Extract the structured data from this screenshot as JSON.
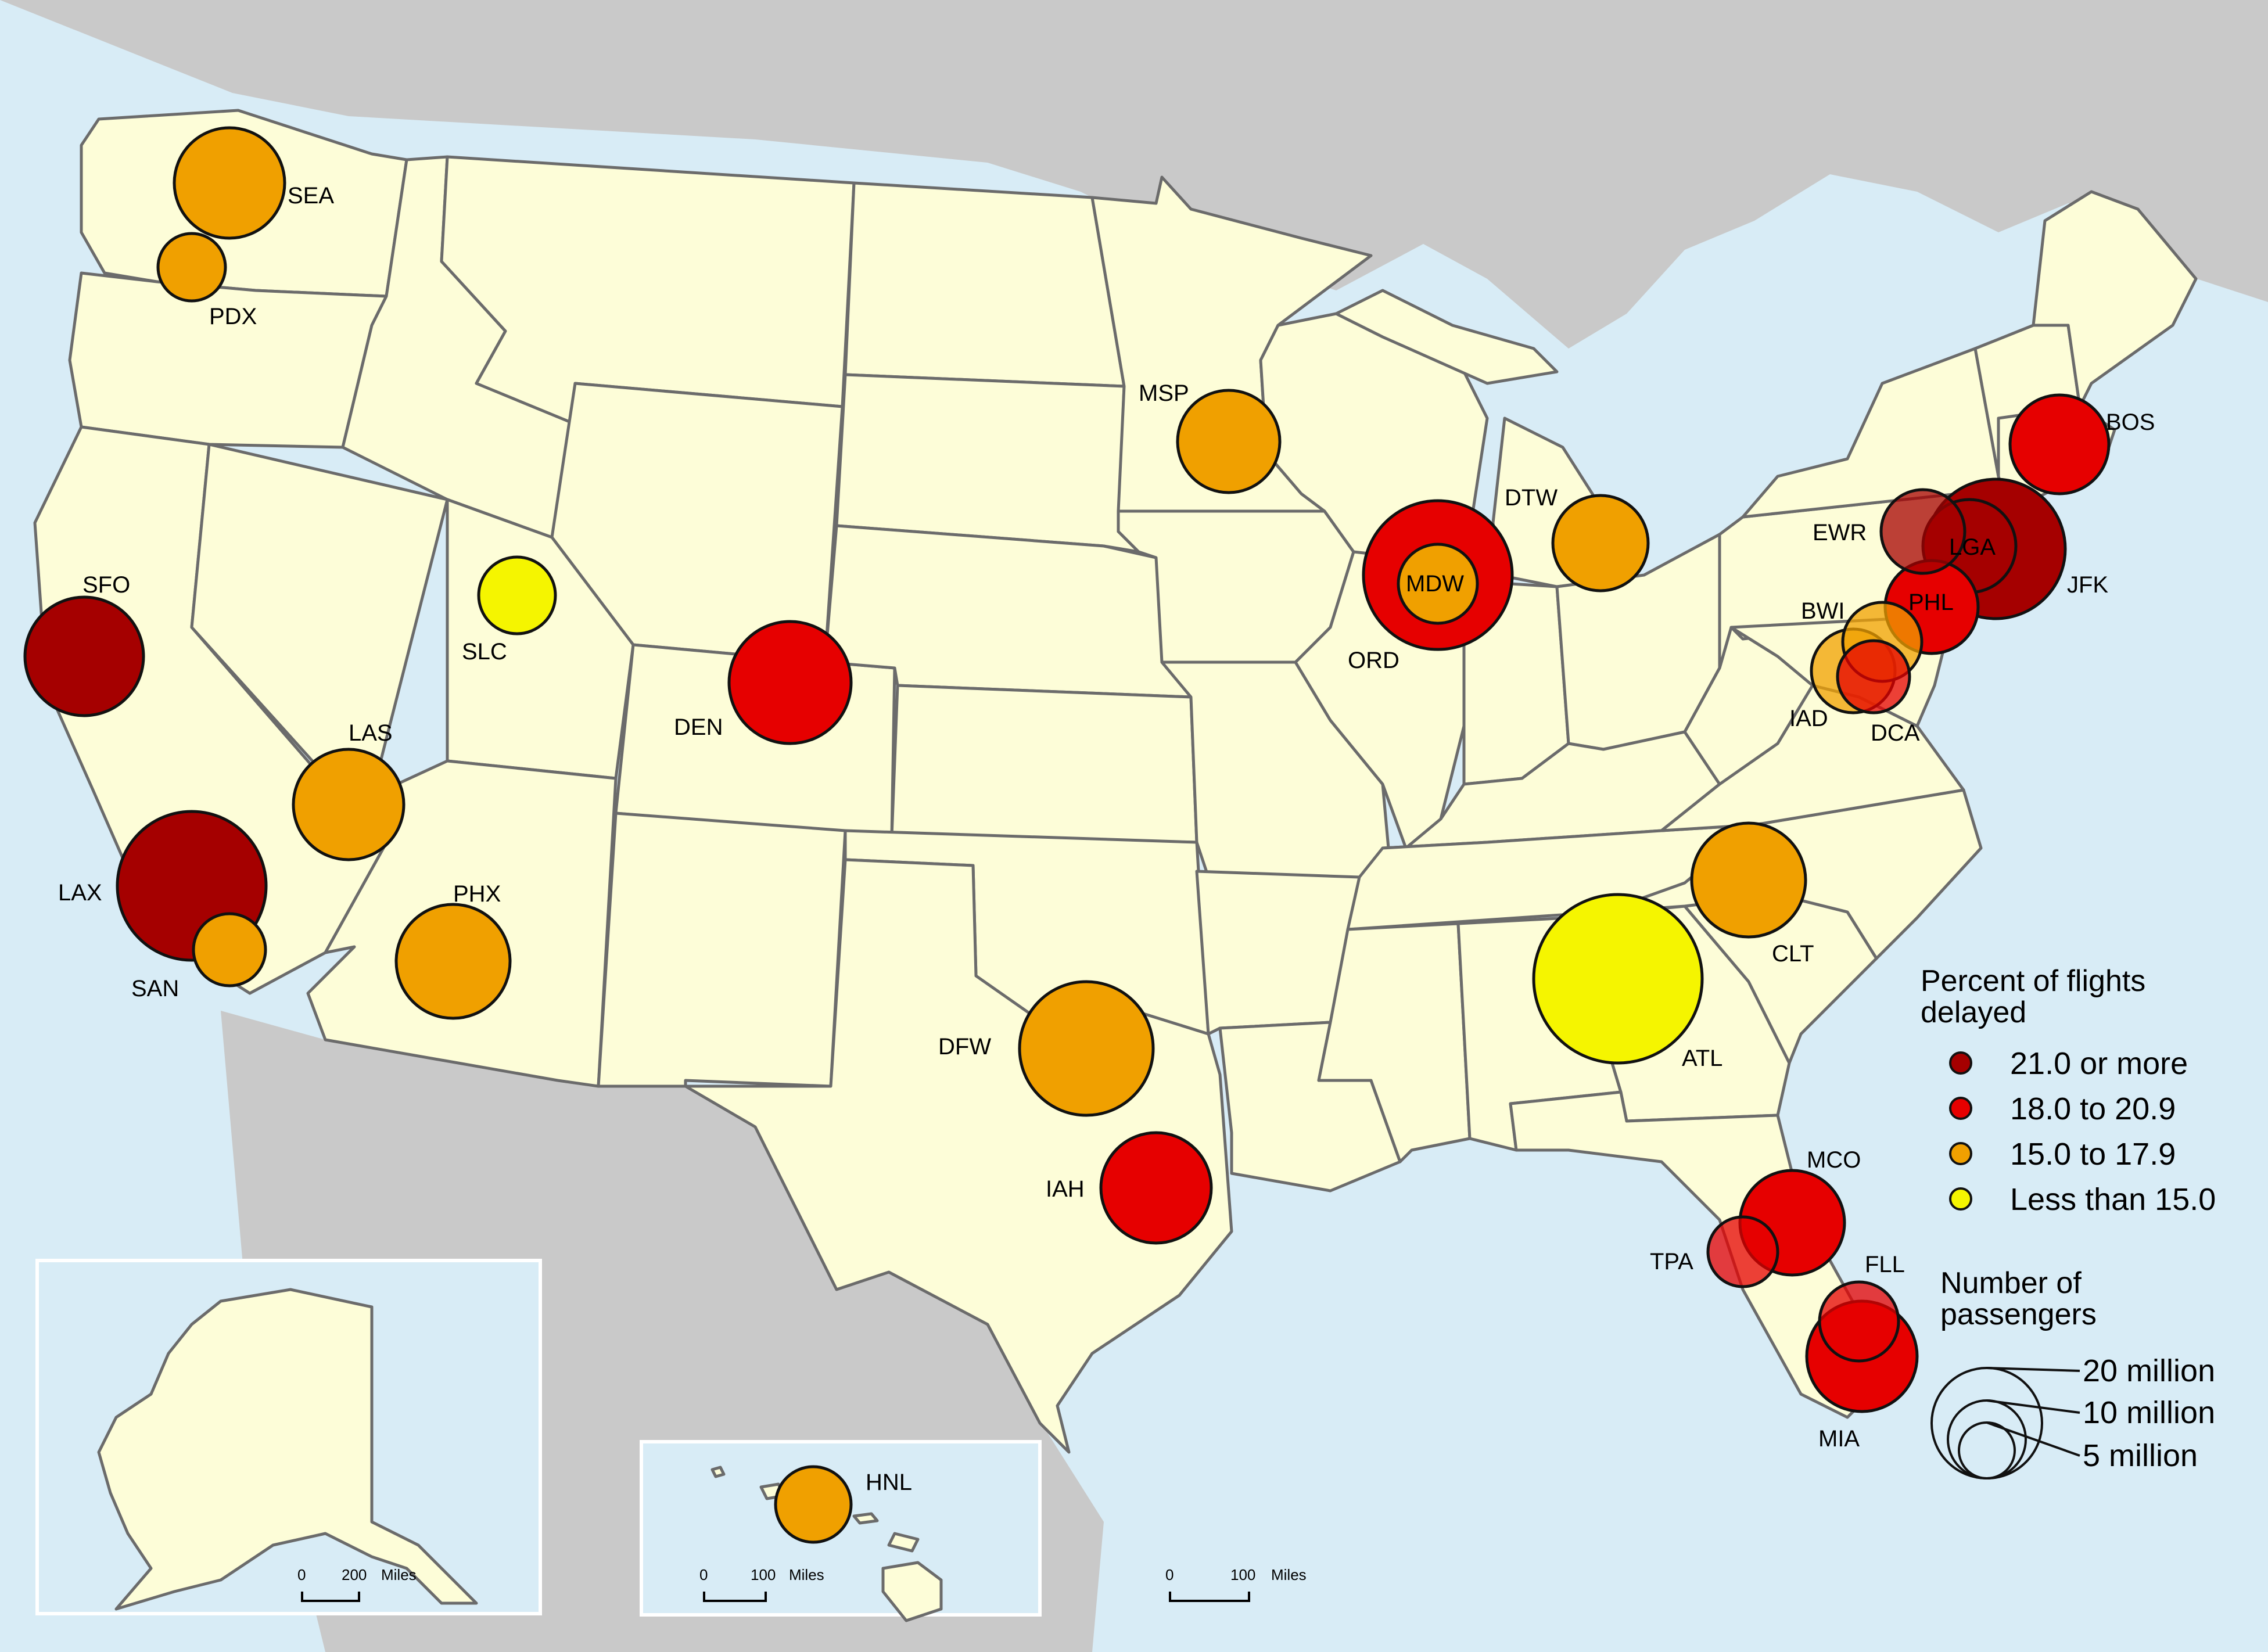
{
  "legend": {
    "color_title": "Percent of flights delayed",
    "color_classes": [
      {
        "label": "21.0 or more",
        "color": "#a50000"
      },
      {
        "label": "18.0 to 20.9",
        "color": "#e60000"
      },
      {
        "label": "15.0 to 17.9",
        "color": "#f0a000"
      },
      {
        "label": "Less than 15.0",
        "color": "#f5f500"
      }
    ],
    "size_title": "Number of passengers",
    "size_classes": [
      {
        "label": "20 million",
        "value": 20
      },
      {
        "label": "10 million",
        "value": 10
      },
      {
        "label": "5 million",
        "value": 5
      }
    ]
  },
  "airports": [
    {
      "code": "SEA",
      "delay_class": 2
    },
    {
      "code": "PDX",
      "delay_class": 2
    },
    {
      "code": "SFO",
      "delay_class": 0
    },
    {
      "code": "LAX",
      "delay_class": 0
    },
    {
      "code": "SAN",
      "delay_class": 2
    },
    {
      "code": "LAS",
      "delay_class": 2
    },
    {
      "code": "PHX",
      "delay_class": 2
    },
    {
      "code": "SLC",
      "delay_class": 3
    },
    {
      "code": "DEN",
      "delay_class": 1
    },
    {
      "code": "MSP",
      "delay_class": 2
    },
    {
      "code": "DFW",
      "delay_class": 2
    },
    {
      "code": "IAH",
      "delay_class": 1
    },
    {
      "code": "ORD",
      "delay_class": 1
    },
    {
      "code": "MDW",
      "delay_class": 2
    },
    {
      "code": "DTW",
      "delay_class": 2
    },
    {
      "code": "ATL",
      "delay_class": 3
    },
    {
      "code": "CLT",
      "delay_class": 2
    },
    {
      "code": "MCO",
      "delay_class": 1
    },
    {
      "code": "TPA",
      "delay_class": 1
    },
    {
      "code": "FLL",
      "delay_class": 1
    },
    {
      "code": "MIA",
      "delay_class": 1
    },
    {
      "code": "BOS",
      "delay_class": 1
    },
    {
      "code": "EWR",
      "delay_class": 0
    },
    {
      "code": "JFK",
      "delay_class": 0
    },
    {
      "code": "LGA",
      "delay_class": 0
    },
    {
      "code": "PHL",
      "delay_class": 1
    },
    {
      "code": "BWI",
      "delay_class": 2
    },
    {
      "code": "IAD",
      "delay_class": 2
    },
    {
      "code": "DCA",
      "delay_class": 1
    },
    {
      "code": "HNL",
      "delay_class": 2
    }
  ],
  "scale_bars": [
    {
      "zero": "0",
      "value": "200",
      "unit": "Miles"
    },
    {
      "zero": "0",
      "value": "100",
      "unit": "Miles"
    },
    {
      "zero": "0",
      "value": "100",
      "unit": "Miles"
    }
  ]
}
